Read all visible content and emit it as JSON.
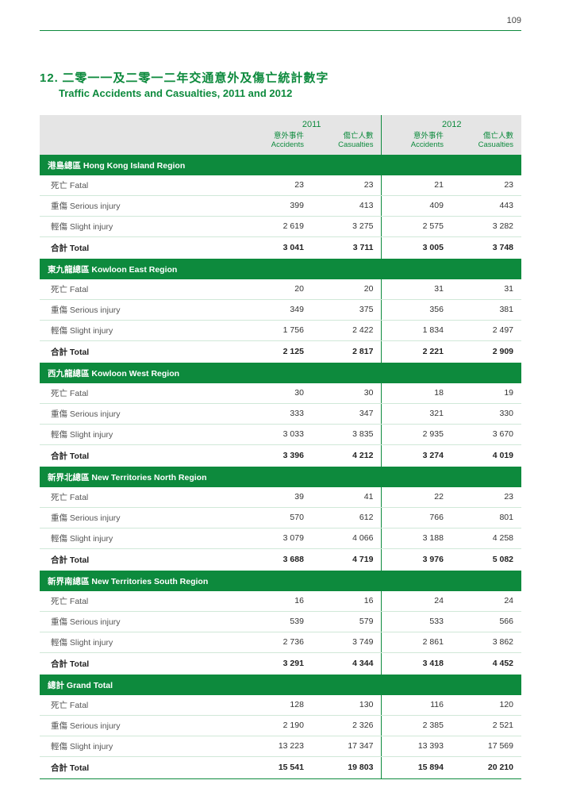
{
  "page_number": "109",
  "title_prefix": "12.",
  "title_zh": "二零一一及二零一二年交通意外及傷亡統計數字",
  "title_en": "Traffic Accidents and Casualties, 2011 and 2012",
  "colors": {
    "brand": "#0d8a3d",
    "header_bg": "#e5e5e5",
    "row_divider": "#d0e8d8"
  },
  "header": {
    "year_2011": "2011",
    "year_2012": "2012",
    "accidents_zh": "意外事件",
    "accidents_en": "Accidents",
    "casualties_zh": "傷亡人數",
    "casualties_en": "Casualties"
  },
  "row_labels": {
    "fatal": "死亡 Fatal",
    "serious": "重傷 Serious injury",
    "slight": "輕傷 Slight injury",
    "total": "合計 Total"
  },
  "regions": [
    {
      "name": "港島總區 Hong Kong Island Region",
      "rows": [
        {
          "label_key": "fatal",
          "a11": "23",
          "c11": "23",
          "a12": "21",
          "c12": "23"
        },
        {
          "label_key": "serious",
          "a11": "399",
          "c11": "413",
          "a12": "409",
          "c12": "443"
        },
        {
          "label_key": "slight",
          "a11": "2 619",
          "c11": "3 275",
          "a12": "2 575",
          "c12": "3 282"
        }
      ],
      "total": {
        "a11": "3 041",
        "c11": "3 711",
        "a12": "3 005",
        "c12": "3 748"
      }
    },
    {
      "name": "東九龍總區 Kowloon East Region",
      "rows": [
        {
          "label_key": "fatal",
          "a11": "20",
          "c11": "20",
          "a12": "31",
          "c12": "31"
        },
        {
          "label_key": "serious",
          "a11": "349",
          "c11": "375",
          "a12": "356",
          "c12": "381"
        },
        {
          "label_key": "slight",
          "a11": "1 756",
          "c11": "2 422",
          "a12": "1 834",
          "c12": "2 497"
        }
      ],
      "total": {
        "a11": "2 125",
        "c11": "2 817",
        "a12": "2 221",
        "c12": "2 909"
      }
    },
    {
      "name": "西九龍總區 Kowloon West Region",
      "rows": [
        {
          "label_key": "fatal",
          "a11": "30",
          "c11": "30",
          "a12": "18",
          "c12": "19"
        },
        {
          "label_key": "serious",
          "a11": "333",
          "c11": "347",
          "a12": "321",
          "c12": "330"
        },
        {
          "label_key": "slight",
          "a11": "3 033",
          "c11": "3 835",
          "a12": "2 935",
          "c12": "3 670"
        }
      ],
      "total": {
        "a11": "3 396",
        "c11": "4 212",
        "a12": "3 274",
        "c12": "4 019"
      }
    },
    {
      "name": "新界北總區 New Territories North Region",
      "rows": [
        {
          "label_key": "fatal",
          "a11": "39",
          "c11": "41",
          "a12": "22",
          "c12": "23"
        },
        {
          "label_key": "serious",
          "a11": "570",
          "c11": "612",
          "a12": "766",
          "c12": "801"
        },
        {
          "label_key": "slight",
          "a11": "3 079",
          "c11": "4 066",
          "a12": "3 188",
          "c12": "4 258"
        }
      ],
      "total": {
        "a11": "3 688",
        "c11": "4 719",
        "a12": "3 976",
        "c12": "5 082"
      }
    },
    {
      "name": "新界南總區 New Territories South Region",
      "rows": [
        {
          "label_key": "fatal",
          "a11": "16",
          "c11": "16",
          "a12": "24",
          "c12": "24"
        },
        {
          "label_key": "serious",
          "a11": "539",
          "c11": "579",
          "a12": "533",
          "c12": "566"
        },
        {
          "label_key": "slight",
          "a11": "2 736",
          "c11": "3 749",
          "a12": "2 861",
          "c12": "3 862"
        }
      ],
      "total": {
        "a11": "3 291",
        "c11": "4 344",
        "a12": "3 418",
        "c12": "4 452"
      }
    },
    {
      "name": "總計 Grand Total",
      "rows": [
        {
          "label_key": "fatal",
          "a11": "128",
          "c11": "130",
          "a12": "116",
          "c12": "120"
        },
        {
          "label_key": "serious",
          "a11": "2 190",
          "c11": "2 326",
          "a12": "2 385",
          "c12": "2 521"
        },
        {
          "label_key": "slight",
          "a11": "13 223",
          "c11": "17 347",
          "a12": "13 393",
          "c12": "17 569"
        }
      ],
      "total": {
        "a11": "15 541",
        "c11": "19 803",
        "a12": "15 894",
        "c12": "20 210"
      }
    }
  ]
}
